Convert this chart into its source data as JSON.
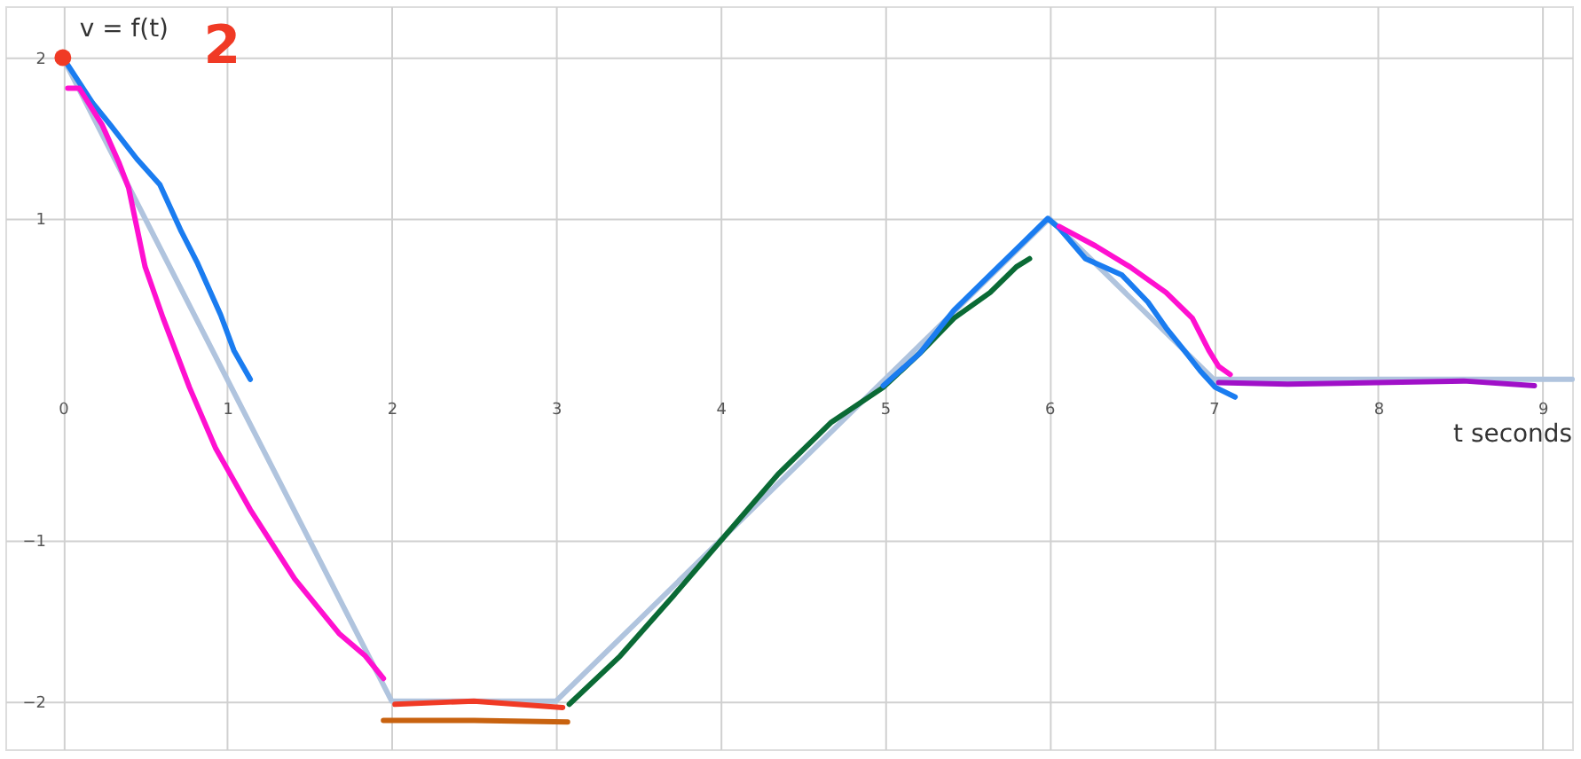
{
  "chart_data": {
    "type": "line",
    "xlabel": "t seconds",
    "ylabel": "v = f(t)",
    "xlim": [
      -0.35,
      9.18
    ],
    "ylim": [
      -2.3,
      2.32
    ],
    "xticks": [
      0,
      1,
      2,
      3,
      4,
      5,
      6,
      7,
      8,
      9
    ],
    "yticks": [
      -2,
      -1,
      1,
      2
    ],
    "grid": true,
    "marker": "none",
    "line_style": "solid",
    "annotations": [
      "2"
    ],
    "series": [
      {
        "color": "#b0c4de",
        "x": [
          0,
          1,
          2,
          3,
          6,
          7,
          9.18
        ],
        "values": [
          2,
          0,
          -2,
          -2,
          1,
          0,
          0
        ]
      },
      {
        "color": "#1a7cf0",
        "x": [
          0.02,
          0.18,
          0.29,
          0.45,
          0.59,
          0.72,
          0.82,
          0.96,
          1.04,
          1.14
        ],
        "values": [
          1.97,
          1.72,
          1.58,
          1.37,
          1.21,
          0.92,
          0.72,
          0.4,
          0.18,
          0.0
        ]
      },
      {
        "color": "#ff10d0",
        "x": [
          0.03,
          0.1,
          0.24,
          0.34,
          0.4,
          0.5,
          0.61,
          0.77,
          0.93,
          1.14,
          1.41,
          1.68,
          1.84,
          1.95
        ],
        "values": [
          1.81,
          1.81,
          1.58,
          1.35,
          1.19,
          0.7,
          0.38,
          -0.05,
          -0.43,
          -0.81,
          -1.24,
          -1.58,
          -1.72,
          -1.86
        ]
      },
      {
        "color": "#c8620f",
        "x": [
          1.95,
          2.5,
          3.07
        ],
        "values": [
          -2.12,
          -2.12,
          -2.13
        ]
      },
      {
        "color": "#f03a25",
        "x": [
          2.02,
          2.5,
          3.04
        ],
        "values": [
          -2.02,
          -2.0,
          -2.04
        ]
      },
      {
        "color": "#0a6a35",
        "x": [
          3.08,
          3.39,
          3.71,
          4.03,
          4.35,
          4.67,
          4.99,
          5.21,
          5.42,
          5.64,
          5.8,
          5.88
        ],
        "values": [
          -2.02,
          -1.72,
          -1.35,
          -0.97,
          -0.59,
          -0.27,
          -0.05,
          0.16,
          0.38,
          0.54,
          0.7,
          0.75
        ]
      },
      {
        "color": "#1a7cf0",
        "x": [
          4.99,
          5.21,
          5.42,
          5.64,
          5.85,
          5.99,
          6.06,
          6.22,
          6.44,
          6.6,
          6.71,
          6.82,
          6.92,
          7.01,
          7.13
        ],
        "values": [
          -0.04,
          0.16,
          0.43,
          0.65,
          0.86,
          1.0,
          0.94,
          0.75,
          0.65,
          0.48,
          0.32,
          0.18,
          0.05,
          -0.05,
          -0.11
        ]
      },
      {
        "color": "#ff10d0",
        "x": [
          6.06,
          6.28,
          6.49,
          6.71,
          6.87,
          6.97,
          7.03,
          7.1
        ],
        "values": [
          0.95,
          0.83,
          0.7,
          0.54,
          0.38,
          0.18,
          0.08,
          0.03
        ]
      },
      {
        "color": "#a010c8",
        "x": [
          7.03,
          7.45,
          7.99,
          8.52,
          8.95
        ],
        "values": [
          -0.02,
          -0.03,
          -0.02,
          -0.01,
          -0.04
        ]
      },
      {
        "type": "scatter",
        "marker": "circle",
        "color": "#f03a25",
        "x": [
          0
        ],
        "values": [
          2
        ]
      }
    ]
  }
}
